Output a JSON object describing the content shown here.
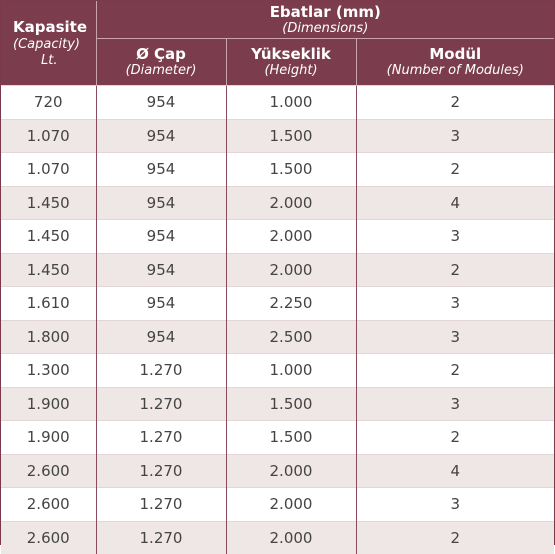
{
  "header": {
    "capacity": {
      "main": "Kapasite",
      "sub": "(Capacity)",
      "unit": "Lt."
    },
    "group": {
      "main": "Ebatlar (mm)",
      "sub": "(Dimensions)"
    },
    "diameter": {
      "main": "Ø Çap",
      "sub": "(Diameter)"
    },
    "height": {
      "main": "Yükseklik",
      "sub": "(Height)"
    },
    "modules": {
      "main": "Modül",
      "sub": "(Number of Modules)"
    }
  },
  "rows": [
    {
      "capacity": "720",
      "diameter": "954",
      "height": "1.000",
      "modules": "2"
    },
    {
      "capacity": "1.070",
      "diameter": "954",
      "height": "1.500",
      "modules": "3"
    },
    {
      "capacity": "1.070",
      "diameter": "954",
      "height": "1.500",
      "modules": "2"
    },
    {
      "capacity": "1.450",
      "diameter": "954",
      "height": "2.000",
      "modules": "4"
    },
    {
      "capacity": "1.450",
      "diameter": "954",
      "height": "2.000",
      "modules": "3"
    },
    {
      "capacity": "1.450",
      "diameter": "954",
      "height": "2.000",
      "modules": "2"
    },
    {
      "capacity": "1.610",
      "diameter": "954",
      "height": "2.250",
      "modules": "3"
    },
    {
      "capacity": "1.800",
      "diameter": "954",
      "height": "2.500",
      "modules": "3"
    },
    {
      "capacity": "1.300",
      "diameter": "1.270",
      "height": "1.000",
      "modules": "2"
    },
    {
      "capacity": "1.900",
      "diameter": "1.270",
      "height": "1.500",
      "modules": "3"
    },
    {
      "capacity": "1.900",
      "diameter": "1.270",
      "height": "1.500",
      "modules": "2"
    },
    {
      "capacity": "2.600",
      "diameter": "1.270",
      "height": "2.000",
      "modules": "4"
    },
    {
      "capacity": "2.600",
      "diameter": "1.270",
      "height": "2.000",
      "modules": "3"
    },
    {
      "capacity": "2.600",
      "diameter": "1.270",
      "height": "2.000",
      "modules": "2"
    }
  ],
  "colors": {
    "header_bg": "#7b3d4e",
    "header_text": "#ffffff",
    "row_alt_bg": "#efe6e6",
    "cell_text": "#444444",
    "column_rule": "#8a4c5c"
  }
}
